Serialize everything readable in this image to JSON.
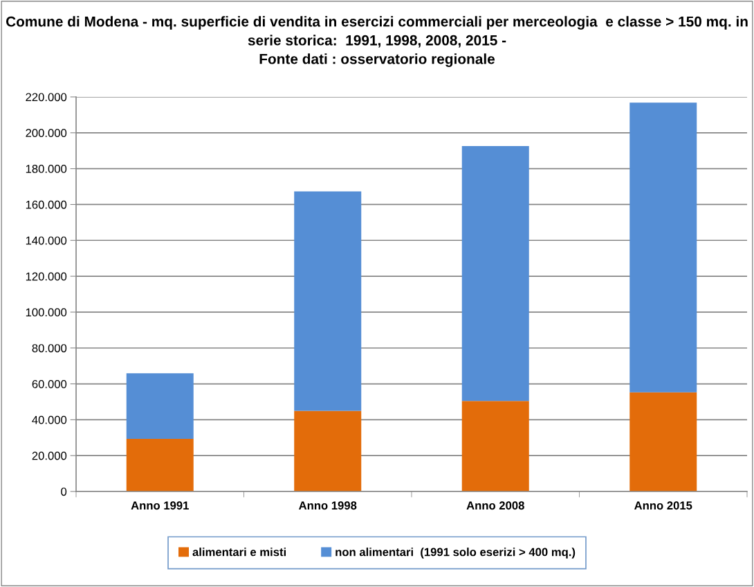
{
  "chart_data": {
    "type": "bar",
    "stacked": true,
    "title": "Comune di Modena - mq. superficie di vendita in esercizi commerciali per merceologia  e classe > 150 mq. in serie storica:  1991, 1998, 2008, 2015 -\nFonte dati : osservatorio regionale",
    "categories": [
      "Anno 1991",
      "Anno 1998",
      "Anno 2008",
      "Anno 2015"
    ],
    "series": [
      {
        "name": "alimentari e misti",
        "color": "#e36c0a",
        "values": [
          29300,
          45000,
          50500,
          55300
        ]
      },
      {
        "name": "non alimentari  (1991 solo eserizi > 400 mq.)",
        "color": "#558ed5",
        "values": [
          36600,
          122300,
          142100,
          161500
        ]
      }
    ],
    "ylim": [
      0,
      220000
    ],
    "yticks": [
      {
        "value": 0,
        "label": "0"
      },
      {
        "value": 20000,
        "label": "20.000"
      },
      {
        "value": 40000,
        "label": "40.000"
      },
      {
        "value": 60000,
        "label": "60.000"
      },
      {
        "value": 80000,
        "label": "80.000"
      },
      {
        "value": 100000,
        "label": "100.000"
      },
      {
        "value": 120000,
        "label": "120.000"
      },
      {
        "value": 140000,
        "label": "140.000"
      },
      {
        "value": 160000,
        "label": "160.000"
      },
      {
        "value": 180000,
        "label": "180.000"
      },
      {
        "value": 200000,
        "label": "200.000"
      },
      {
        "value": 220000,
        "label": "220.000"
      }
    ],
    "grid": "y",
    "legend": "bottom"
  }
}
